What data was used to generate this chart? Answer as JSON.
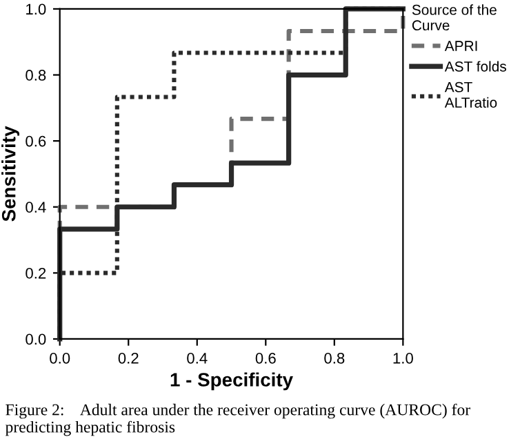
{
  "chart_data": {
    "type": "step",
    "xlabel": "1 - Specificity",
    "ylabel": "Sensitivity",
    "legend_title": "Source of the\nCurve",
    "legend": "right",
    "series": [
      {
        "name": "APRI",
        "color": "#707070",
        "line_style": "dashed",
        "x": [
          0,
          0,
          0.167,
          0.333,
          0.5,
          0.667,
          0.833,
          1.0
        ],
        "values": [
          0,
          0.4,
          0.4,
          0.467,
          0.667,
          0.933,
          0.933,
          1.0
        ]
      },
      {
        "name": "AST folds",
        "color": "#2a2a2a",
        "line_style": "solid",
        "x": [
          0,
          0,
          0.167,
          0.333,
          0.5,
          0.667,
          0.833,
          1.0
        ],
        "values": [
          0,
          0.333,
          0.4,
          0.467,
          0.533,
          0.8,
          1.0,
          1.0
        ]
      },
      {
        "name": "AST\nALTratio",
        "color": "#2a2a2a",
        "line_style": "dotted",
        "x": [
          0,
          0,
          0.167,
          0.333,
          0.833,
          1.0
        ],
        "values": [
          0,
          0.2,
          0.733,
          0.867,
          1.0,
          1.0
        ]
      }
    ],
    "xlim": [
      0,
      1
    ],
    "ylim": [
      0,
      1
    ],
    "xticks": [
      {
        "value": 0,
        "label": "0.0"
      },
      0.2,
      0.4,
      0.6,
      0.8,
      {
        "value": 1,
        "label": "1.0"
      }
    ],
    "yticks": [
      {
        "value": 0,
        "label": "0.0"
      },
      0.2,
      0.4,
      0.6,
      0.8,
      {
        "value": 1,
        "label": "1.0"
      }
    ],
    "grid": false,
    "marker": "none",
    "annotations": [
      "Figure 2:    Adult area under the receiver operating curve (AUROC) for predicting hepatic fibrosis"
    ]
  }
}
